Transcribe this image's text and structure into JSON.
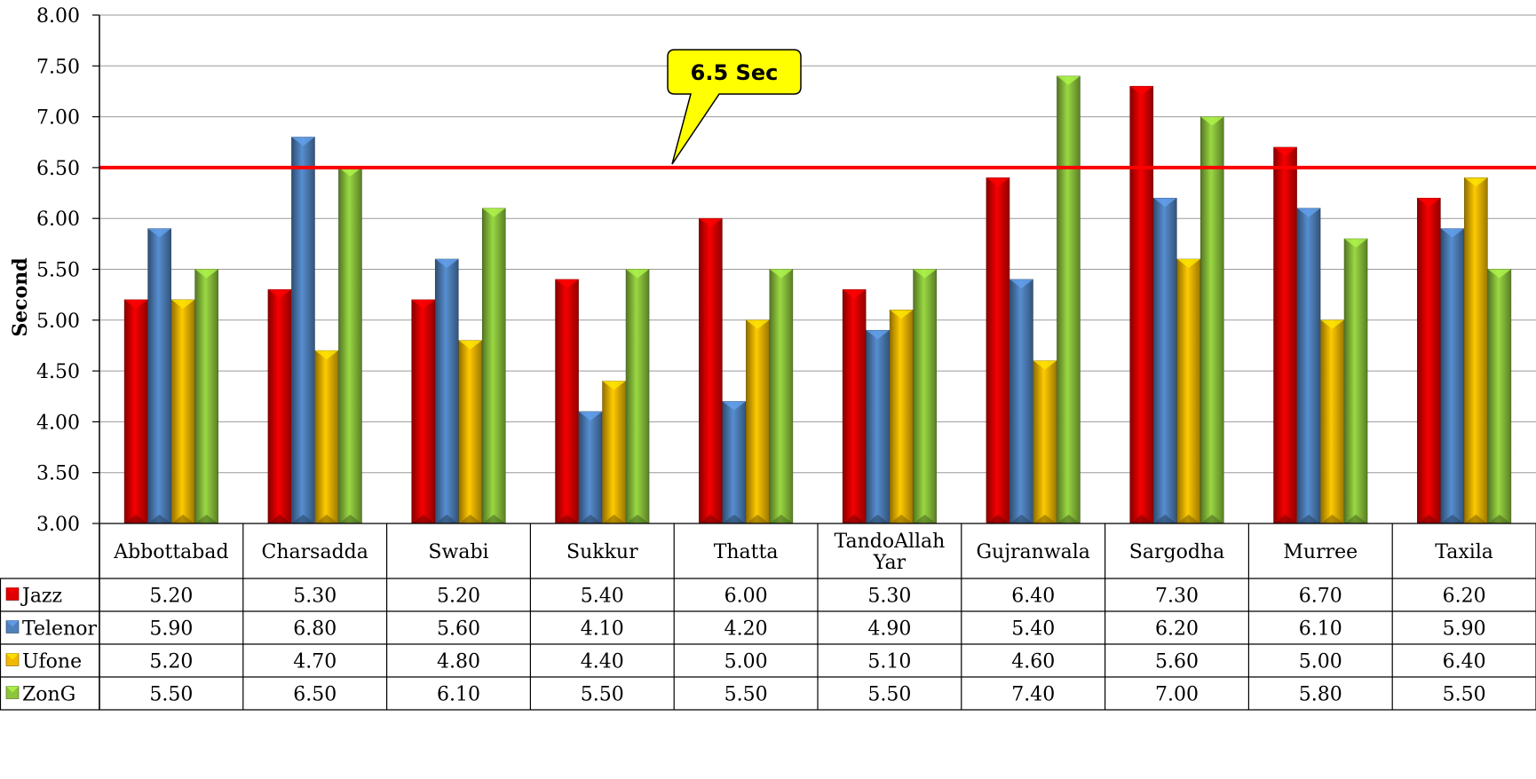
{
  "chart_data": {
    "type": "bar",
    "ylabel": "Second",
    "ylim": [
      3.0,
      8.0
    ],
    "yticks": [
      "8.00",
      "7.50",
      "7.00",
      "6.50",
      "6.00",
      "5.50",
      "5.00",
      "4.50",
      "4.00",
      "3.50",
      "3.00"
    ],
    "categories": [
      "Abbottabad",
      "Charsadda",
      "Swabi",
      "Sukkur",
      "Thatta",
      "TandoAllah Yar",
      "Gujranwala",
      "Sargodha",
      "Murree",
      "Taxila"
    ],
    "series": [
      {
        "name": "Jazz",
        "color": "#e00000",
        "values": [
          5.2,
          5.3,
          5.2,
          5.4,
          6.0,
          5.3,
          6.4,
          7.3,
          6.7,
          6.2
        ],
        "labels": [
          "5.20",
          "5.30",
          "5.20",
          "5.40",
          "6.00",
          "5.30",
          "6.40",
          "7.30",
          "6.70",
          "6.20"
        ]
      },
      {
        "name": "Telenor",
        "color": "#4f81bd",
        "values": [
          5.9,
          6.8,
          5.6,
          4.1,
          4.2,
          4.9,
          5.4,
          6.2,
          6.1,
          5.9
        ],
        "labels": [
          "5.90",
          "6.80",
          "5.60",
          "4.10",
          "4.20",
          "4.90",
          "5.40",
          "6.20",
          "6.10",
          "5.90"
        ]
      },
      {
        "name": "Ufone",
        "color": "#f2b800",
        "values": [
          5.2,
          4.7,
          4.8,
          4.4,
          5.0,
          5.1,
          4.6,
          5.6,
          5.0,
          6.4
        ],
        "labels": [
          "5.20",
          "4.70",
          "4.80",
          "4.40",
          "5.00",
          "5.10",
          "4.60",
          "5.60",
          "5.00",
          "6.40"
        ]
      },
      {
        "name": "ZonG",
        "color": "#8cc43c",
        "values": [
          5.5,
          6.5,
          6.1,
          5.5,
          5.5,
          5.5,
          7.4,
          7.0,
          5.8,
          5.5
        ],
        "labels": [
          "5.50",
          "6.50",
          "6.10",
          "5.50",
          "5.50",
          "5.50",
          "7.40",
          "7.00",
          "5.80",
          "5.50"
        ]
      }
    ],
    "threshold": {
      "value": 6.5,
      "color": "#ff0000",
      "label": "6.5 Sec"
    },
    "grid": true,
    "legend": "data-table-left"
  }
}
